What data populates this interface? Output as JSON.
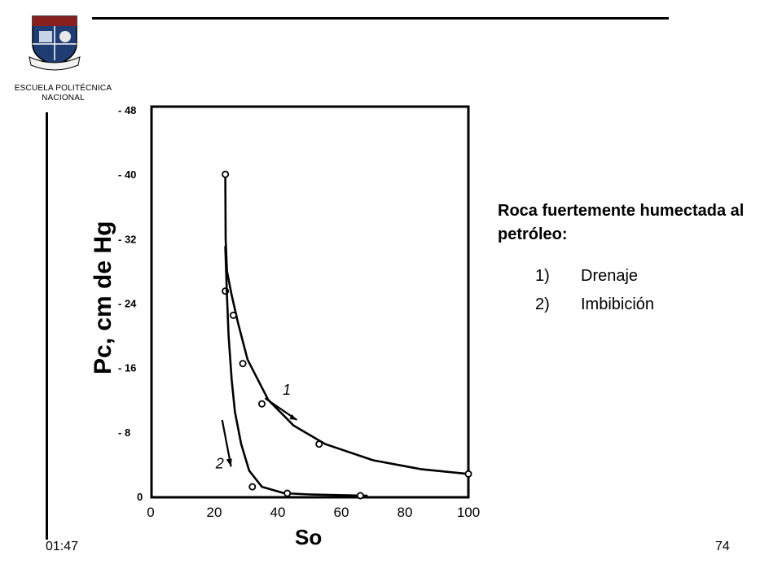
{
  "header": {
    "institution_line1": "ESCUELA POLITÉCNICA",
    "institution_line2": "NACIONAL"
  },
  "caption": {
    "title": "Roca fuertemente humectada al petróleo:",
    "items": [
      {
        "number": "1)",
        "label": "Drenaje"
      },
      {
        "number": "2)",
        "label": "Imbibición"
      }
    ]
  },
  "footer": {
    "time": "01:47",
    "page_number": "74"
  },
  "colors": {
    "ink": "#000000",
    "background": "#ffffff"
  },
  "chart_data": {
    "type": "line",
    "title": "",
    "xlabel": "So",
    "ylabel": "Pc, cm de Hg",
    "xlim": [
      0,
      100
    ],
    "ylim": [
      0,
      48
    ],
    "x_ticks": [
      0,
      20,
      40,
      60,
      80,
      100
    ],
    "x_tick_labels": [
      "0",
      "20",
      "40",
      "60",
      "80",
      "100"
    ],
    "y_ticks": [
      0,
      8,
      16,
      24,
      32,
      40,
      48
    ],
    "y_tick_labels": [
      "0",
      "- 8",
      "- 16",
      "- 24",
      "- 32",
      "- 40",
      "- 48"
    ],
    "grid": false,
    "series": [
      {
        "name": "1",
        "curve": [
          [
            23.5,
            40
          ],
          [
            23.6,
            32
          ],
          [
            24.0,
            28
          ],
          [
            25.5,
            25
          ],
          [
            27.5,
            21.5
          ],
          [
            30.5,
            17.0
          ],
          [
            37.0,
            12.0
          ],
          [
            45.0,
            8.8
          ],
          [
            55.0,
            6.5
          ],
          [
            70.0,
            4.5
          ],
          [
            85.0,
            3.4
          ],
          [
            100,
            2.8
          ]
        ],
        "markers": [
          [
            23.5,
            40
          ],
          [
            23.5,
            25.5
          ],
          [
            26.0,
            22.5
          ],
          [
            29.0,
            16.5
          ],
          [
            35.0,
            11.5
          ],
          [
            53.0,
            6.5
          ],
          [
            100,
            2.8
          ]
        ]
      },
      {
        "name": "2",
        "curve": [
          [
            23.5,
            31
          ],
          [
            24.0,
            25
          ],
          [
            24.5,
            20
          ],
          [
            25.5,
            14.5
          ],
          [
            26.5,
            10.5
          ],
          [
            28.5,
            6.5
          ],
          [
            31.0,
            3.2
          ],
          [
            35.0,
            1.2
          ],
          [
            42.0,
            0.4
          ],
          [
            50.0,
            0.25
          ],
          [
            68.0,
            0.1
          ]
        ],
        "markers": [
          [
            32.0,
            1.2
          ],
          [
            43.0,
            0.4
          ],
          [
            66.0,
            0.1
          ]
        ]
      }
    ],
    "annotations": [
      {
        "text": "1",
        "near_x": 40,
        "near_y": 11
      },
      {
        "text": "2",
        "near_x": 23,
        "near_y": 3.5
      }
    ]
  }
}
